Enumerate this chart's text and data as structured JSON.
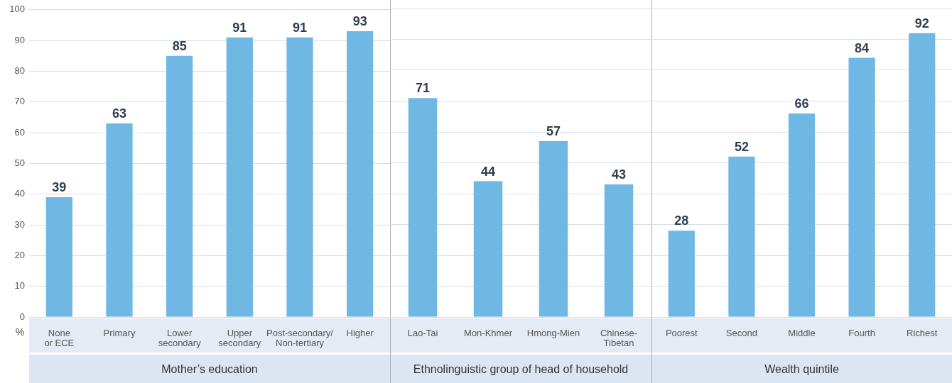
{
  "chart_data": [
    {
      "type": "bar",
      "xlabel": "Mother’s education",
      "ylabel": "%",
      "categories": [
        "None\nor ECE",
        "Primary",
        "Lower\nsecondary",
        "Upper\nsecondary",
        "Post-secondary/\nNon-tertiary",
        "Higher"
      ],
      "values": [
        39,
        63,
        85,
        91,
        91,
        93
      ],
      "color": "#6fb8e4",
      "ylim": [
        0,
        100
      ],
      "yticks": [
        0,
        10,
        20,
        30,
        40,
        50,
        60,
        70,
        80,
        90,
        100
      ],
      "grid": "y",
      "data_labels": true
    },
    {
      "type": "bar",
      "xlabel": "Ethnolinguistic group of head of household",
      "categories": [
        "Lao-Tai",
        "Mon-Khmer",
        "Hmong-Mien",
        "Chinese-\nTibetan"
      ],
      "values": [
        71,
        44,
        57,
        43
      ],
      "color": "#6fb8e4",
      "ylim": [
        0,
        100
      ],
      "yticks": [
        0,
        10,
        20,
        30,
        40,
        50,
        60,
        70,
        80,
        90,
        100
      ],
      "grid": "y",
      "data_labels": true,
      "tick_labels": "x"
    },
    {
      "type": "bar",
      "xlabel": "Wealth quintile",
      "categories": [
        "Poorest",
        "Second",
        "Middle",
        "Fourth",
        "Richest"
      ],
      "values": [
        28,
        52,
        66,
        84,
        92
      ],
      "color": "#6fb8e4",
      "ylim": [
        0,
        100
      ],
      "yticks": [
        0,
        10,
        20,
        30,
        40,
        50,
        60,
        70,
        80,
        90,
        100
      ],
      "grid": "y",
      "data_labels": true,
      "tick_labels": "x"
    }
  ]
}
